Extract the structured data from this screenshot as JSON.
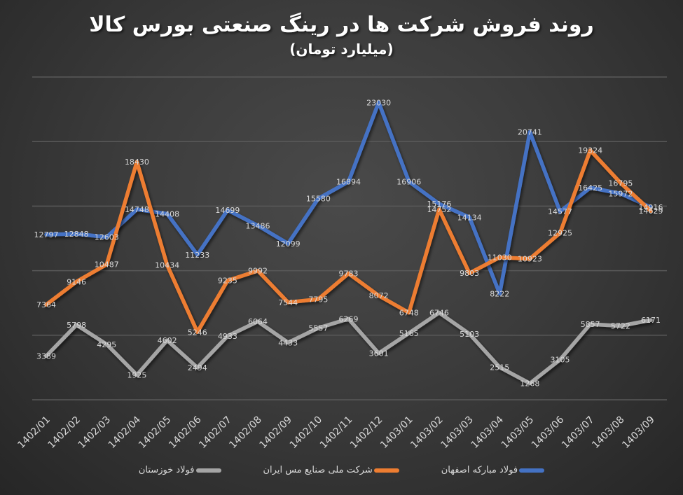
{
  "chart_data": {
    "type": "line",
    "title": "روند فروش شرکت ها در رینگ صنعتی بورس کالا",
    "subtitle": "(میلیارد تومان)",
    "xlabel": "",
    "ylabel": "",
    "ylim": [
      0,
      25000
    ],
    "grid": true,
    "y_gridlines": [
      0,
      5000,
      10000,
      15000,
      20000,
      25000
    ],
    "legend_position": "bottom",
    "categories": [
      "1402/01",
      "1402/02",
      "1402/03",
      "1402/04",
      "1402/05",
      "1402/06",
      "1402/07",
      "1402/08",
      "1402/09",
      "1402/10",
      "1402/11",
      "1402/12",
      "1403/01",
      "1403/02",
      "1403/03",
      "1403/04",
      "1403/05",
      "1403/06",
      "1403/07",
      "1403/08",
      "1403/09"
    ],
    "series": [
      {
        "name": "فولاد مبارکه اصفهان",
        "color": "#4472C4",
        "values": [
          12797,
          12848,
          12603,
          14748,
          14408,
          11233,
          14699,
          13486,
          12099,
          15580,
          16894,
          23030,
          16906,
          15176,
          14134,
          8222,
          20741,
          14577,
          16425,
          15972,
          14916
        ]
      },
      {
        "name": "شرکت ملی صنایع مس ایران",
        "color": "#ED7D31",
        "values": [
          7364,
          9146,
          10487,
          18430,
          10434,
          5246,
          9235,
          9992,
          7544,
          7795,
          9783,
          8072,
          6748,
          14752,
          9803,
          11030,
          10923,
          12925,
          19324,
          16795,
          14629
        ]
      },
      {
        "name": "فولاد خوزستان",
        "color": "#A5A5A5",
        "values": [
          3389,
          5798,
          4295,
          1925,
          4602,
          2494,
          4933,
          6064,
          4433,
          5557,
          6269,
          3601,
          5165,
          6746,
          5103,
          2515,
          1268,
          3105,
          5857,
          5722,
          6171
        ]
      }
    ]
  },
  "legend": {
    "items": [
      {
        "label": "فولاد مبارکه اصفهان",
        "color": "#4472C4"
      },
      {
        "label": "شرکت ملی صنایع مس ایران",
        "color": "#ED7D31"
      },
      {
        "label": "فولاد خوزستان",
        "color": "#A5A5A5"
      }
    ]
  }
}
